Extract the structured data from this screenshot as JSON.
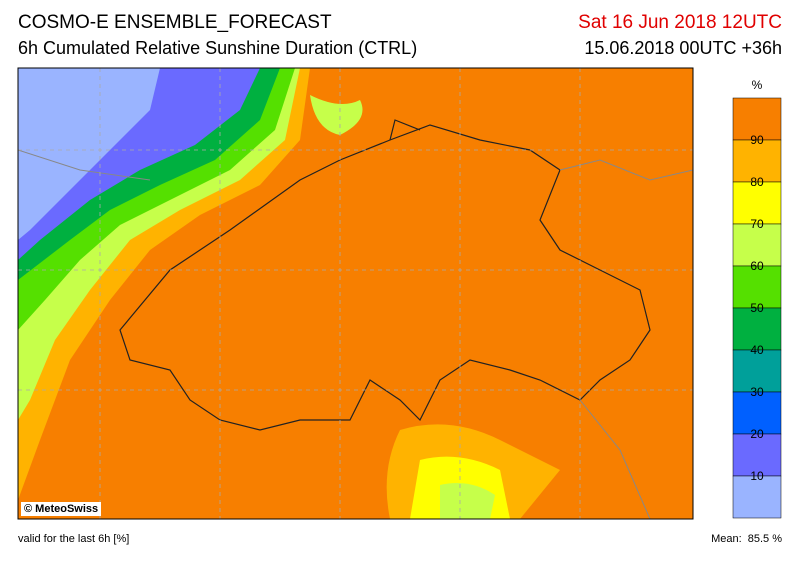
{
  "header": {
    "title": "COSMO-E ENSEMBLE_FORECAST",
    "subtitle": "6h Cumulated Relative Sunshine Duration (CTRL)",
    "valid_time": "Sat 16 Jun 2018 12UTC",
    "run_time": "15.06.2018 00UTC +36h"
  },
  "legend": {
    "unit": "%",
    "labels": [
      "90",
      "80",
      "70",
      "60",
      "50",
      "40",
      "30",
      "20",
      "10"
    ]
  },
  "map": {
    "copyright": "© MeteoSwiss"
  },
  "footer": {
    "note": "valid for the last 6h [%]",
    "mean": "Mean:  85.5 %"
  }
}
